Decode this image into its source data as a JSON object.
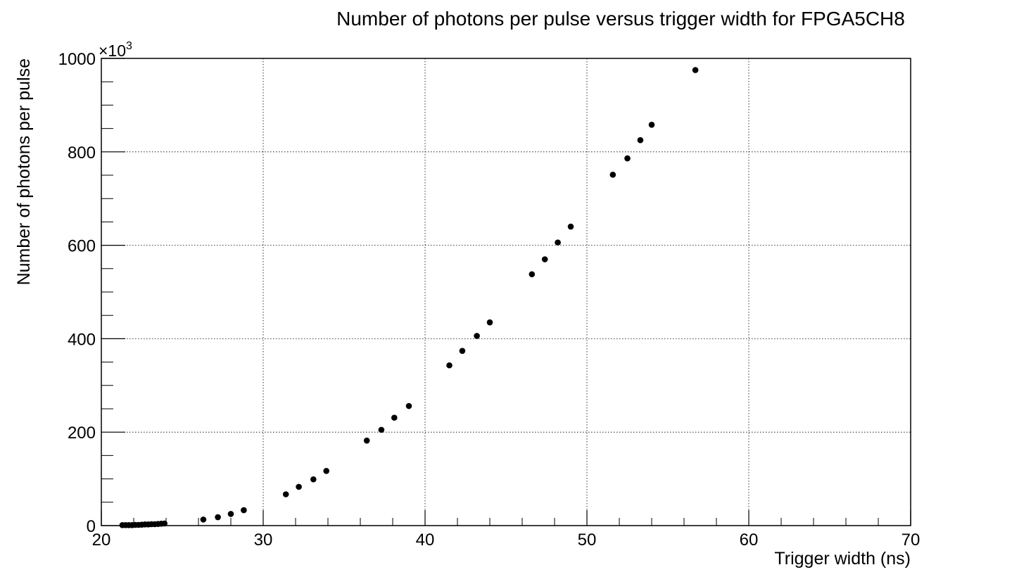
{
  "chart_data": {
    "type": "scatter",
    "title": "Number of photons per pulse versus trigger width for FPGA5CH8",
    "xlabel": "Trigger width (ns)",
    "ylabel": "Number of photons per pulse",
    "y_multiplier_label": "×10",
    "y_multiplier_exponent": "3",
    "xlim": [
      20,
      70
    ],
    "ylim": [
      0,
      1000
    ],
    "x_ticks": [
      20,
      30,
      40,
      50,
      60,
      70
    ],
    "y_ticks": [
      0,
      200,
      400,
      600,
      800,
      1000
    ],
    "x_minor_step": 2,
    "y_minor_step": 50,
    "grid": true,
    "marker_color": "#000000",
    "points": [
      {
        "x": 21.3,
        "y": 1
      },
      {
        "x": 21.5,
        "y": 1
      },
      {
        "x": 21.7,
        "y": 1
      },
      {
        "x": 21.9,
        "y": 1
      },
      {
        "x": 22.1,
        "y": 1.5
      },
      {
        "x": 22.3,
        "y": 1.5
      },
      {
        "x": 22.5,
        "y": 2
      },
      {
        "x": 22.7,
        "y": 2.5
      },
      {
        "x": 22.9,
        "y": 2.5
      },
      {
        "x": 23.1,
        "y": 3
      },
      {
        "x": 23.3,
        "y": 3
      },
      {
        "x": 23.5,
        "y": 3.5
      },
      {
        "x": 23.7,
        "y": 4
      },
      {
        "x": 23.9,
        "y": 4.5
      },
      {
        "x": 26.3,
        "y": 13
      },
      {
        "x": 27.2,
        "y": 18
      },
      {
        "x": 28.0,
        "y": 25
      },
      {
        "x": 28.8,
        "y": 33
      },
      {
        "x": 31.4,
        "y": 67
      },
      {
        "x": 32.2,
        "y": 83
      },
      {
        "x": 33.1,
        "y": 99
      },
      {
        "x": 33.9,
        "y": 117
      },
      {
        "x": 36.4,
        "y": 182
      },
      {
        "x": 37.3,
        "y": 205
      },
      {
        "x": 38.1,
        "y": 231
      },
      {
        "x": 39.0,
        "y": 256
      },
      {
        "x": 41.5,
        "y": 343
      },
      {
        "x": 42.3,
        "y": 374
      },
      {
        "x": 43.2,
        "y": 406
      },
      {
        "x": 44.0,
        "y": 435
      },
      {
        "x": 46.6,
        "y": 538
      },
      {
        "x": 47.4,
        "y": 570
      },
      {
        "x": 48.2,
        "y": 606
      },
      {
        "x": 49.0,
        "y": 640
      },
      {
        "x": 51.6,
        "y": 751
      },
      {
        "x": 52.5,
        "y": 786
      },
      {
        "x": 53.3,
        "y": 825
      },
      {
        "x": 54.0,
        "y": 858
      },
      {
        "x": 56.7,
        "y": 975
      }
    ]
  }
}
